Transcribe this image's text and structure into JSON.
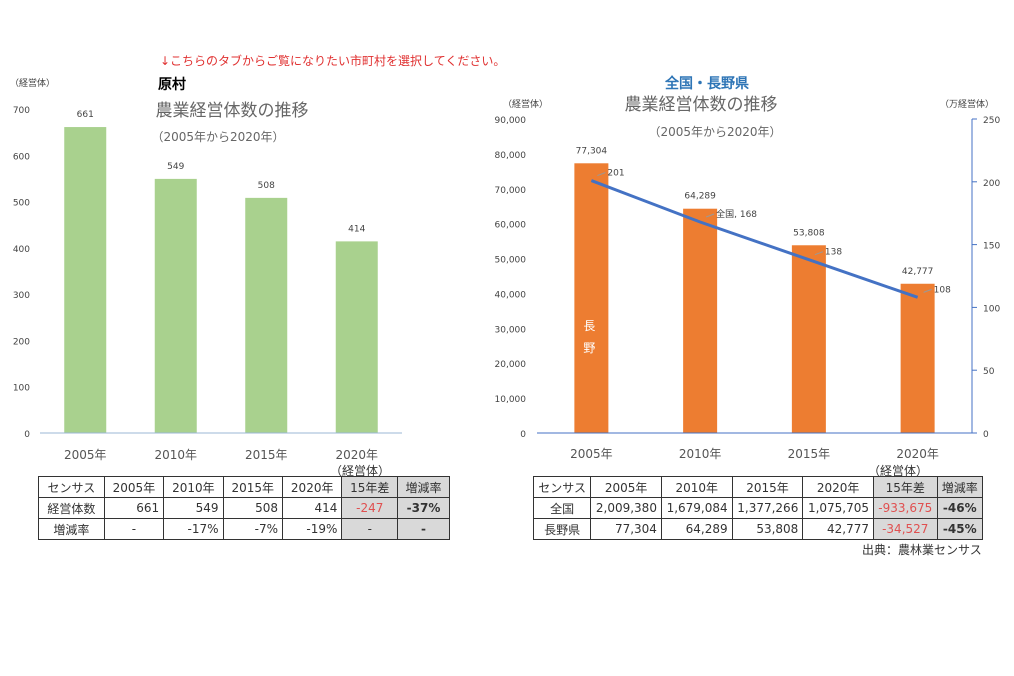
{
  "notice": "↓こちらのタブからご覧になりたい市町村を選択してください。",
  "source": "出典：農林業センサス",
  "colors": {
    "left_bar": "#a9d18e",
    "right_bar": "#ed7d31",
    "line": "#4472c4",
    "notice": "#e03030",
    "heading": "#2e75b6",
    "negative": "#e05050"
  },
  "chart_data": [
    {
      "type": "bar",
      "heading": "原村",
      "title": "農業経営体数の推移",
      "subtitle": "（2005年から2020年）",
      "ylabel": "（経営体）",
      "categories": [
        "2005年",
        "2010年",
        "2015年",
        "2020年"
      ],
      "values": [
        661,
        549,
        508,
        414
      ],
      "ylim": [
        0,
        700
      ],
      "yticks": [
        0,
        100,
        200,
        300,
        400,
        500,
        600,
        700
      ],
      "data_labels": [
        "661",
        "549",
        "508",
        "414"
      ],
      "grid": false
    },
    {
      "type": "bar+line",
      "heading": "全国・長野県",
      "title": "農業経営体数の推移",
      "subtitle": "（2005年から2020年）",
      "ylabel": "（経営体）",
      "y2label": "（万経営体）",
      "categories": [
        "2005年",
        "2010年",
        "2015年",
        "2020年"
      ],
      "series": [
        {
          "name": "長野",
          "type": "bar",
          "axis": "left",
          "values": [
            77304,
            64289,
            53808,
            42777
          ],
          "labels": [
            "77,304",
            "64,289",
            "53,808",
            "42,777"
          ]
        },
        {
          "name": "全国",
          "type": "line",
          "axis": "right",
          "values": [
            201,
            168,
            138,
            108
          ],
          "labels": [
            "201",
            "全国, 168",
            "138",
            "108"
          ]
        }
      ],
      "ylim": [
        0,
        90000
      ],
      "yticks": [
        "0",
        "10,000",
        "20,000",
        "30,000",
        "40,000",
        "50,000",
        "60,000",
        "70,000",
        "80,000",
        "90,000"
      ],
      "y2lim": [
        0,
        250
      ],
      "y2ticks": [
        "0",
        "50",
        "100",
        "150",
        "200",
        "250"
      ],
      "grid": false
    }
  ],
  "tables": {
    "unit": "（経営体）",
    "left": {
      "header": [
        "センサス",
        "2005年",
        "2010年",
        "2015年",
        "2020年",
        "15年差",
        "増減率"
      ],
      "rows": [
        [
          "経営体数",
          "661",
          "549",
          "508",
          "414",
          "-247",
          "-37%"
        ],
        [
          "増減率",
          "-",
          "-17%",
          "-7%",
          "-19%",
          "-",
          "-"
        ]
      ]
    },
    "right": {
      "header": [
        "センサス",
        "2005年",
        "2010年",
        "2015年",
        "2020年",
        "15年差",
        "増減率"
      ],
      "rows": [
        [
          "全国",
          "2,009,380",
          "1,679,084",
          "1,377,266",
          "1,075,705",
          "-933,675",
          "-46%"
        ],
        [
          "長野県",
          "77,304",
          "64,289",
          "53,808",
          "42,777",
          "-34,527",
          "-45%"
        ]
      ]
    }
  }
}
